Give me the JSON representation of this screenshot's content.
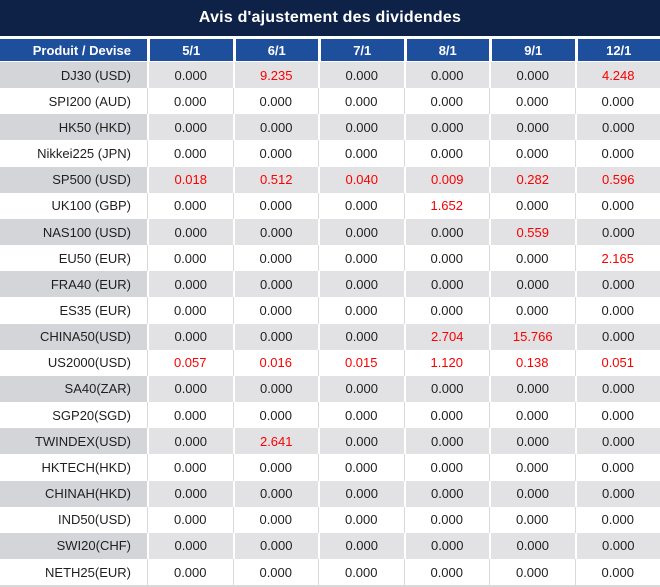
{
  "title": "Avis d'ajustement des dividendes",
  "colors": {
    "title_background": "#0e2247",
    "header_background": "#1d4f9c",
    "stripe_label_gray": "#d3d5d9",
    "stripe_value_gray": "#e2e2e4",
    "gridline_gray": "#d9d9d9",
    "value_red": "#fa0000",
    "value_dark": "#1f1f1f"
  },
  "table": {
    "columns": [
      "Produit / Devise",
      "5/1",
      "6/1",
      "7/1",
      "8/1",
      "9/1",
      "12/1"
    ],
    "rows": [
      {
        "product": "DJ30 (USD)",
        "values": [
          "0.000",
          "9.235",
          "0.000",
          "0.000",
          "0.000",
          "4.248"
        ],
        "red": [
          1,
          5
        ]
      },
      {
        "product": "SPI200 (AUD)",
        "values": [
          "0.000",
          "0.000",
          "0.000",
          "0.000",
          "0.000",
          "0.000"
        ],
        "red": []
      },
      {
        "product": "HK50 (HKD)",
        "values": [
          "0.000",
          "0.000",
          "0.000",
          "0.000",
          "0.000",
          "0.000"
        ],
        "red": []
      },
      {
        "product": "Nikkei225 (JPN)",
        "values": [
          "0.000",
          "0.000",
          "0.000",
          "0.000",
          "0.000",
          "0.000"
        ],
        "red": []
      },
      {
        "product": "SP500 (USD)",
        "values": [
          "0.018",
          "0.512",
          "0.040",
          "0.009",
          "0.282",
          "0.596"
        ],
        "red": [
          0,
          1,
          2,
          3,
          4,
          5
        ]
      },
      {
        "product": "UK100 (GBP)",
        "values": [
          "0.000",
          "0.000",
          "0.000",
          "1.652",
          "0.000",
          "0.000"
        ],
        "red": [
          3
        ]
      },
      {
        "product": "NAS100 (USD)",
        "values": [
          "0.000",
          "0.000",
          "0.000",
          "0.000",
          "0.559",
          "0.000"
        ],
        "red": [
          4
        ]
      },
      {
        "product": "EU50 (EUR)",
        "values": [
          "0.000",
          "0.000",
          "0.000",
          "0.000",
          "0.000",
          "2.165"
        ],
        "red": [
          5
        ]
      },
      {
        "product": "FRA40 (EUR)",
        "values": [
          "0.000",
          "0.000",
          "0.000",
          "0.000",
          "0.000",
          "0.000"
        ],
        "red": []
      },
      {
        "product": "ES35 (EUR)",
        "values": [
          "0.000",
          "0.000",
          "0.000",
          "0.000",
          "0.000",
          "0.000"
        ],
        "red": []
      },
      {
        "product": "CHINA50(USD)",
        "values": [
          "0.000",
          "0.000",
          "0.000",
          "2.704",
          "15.766",
          "0.000"
        ],
        "red": [
          3,
          4
        ]
      },
      {
        "product": "US2000(USD)",
        "values": [
          "0.057",
          "0.016",
          "0.015",
          "1.120",
          "0.138",
          "0.051"
        ],
        "red": [
          0,
          1,
          2,
          3,
          4,
          5
        ]
      },
      {
        "product": "SA40(ZAR)",
        "values": [
          "0.000",
          "0.000",
          "0.000",
          "0.000",
          "0.000",
          "0.000"
        ],
        "red": []
      },
      {
        "product": "SGP20(SGD)",
        "values": [
          "0.000",
          "0.000",
          "0.000",
          "0.000",
          "0.000",
          "0.000"
        ],
        "red": []
      },
      {
        "product": "TWINDEX(USD)",
        "values": [
          "0.000",
          "2.641",
          "0.000",
          "0.000",
          "0.000",
          "0.000"
        ],
        "red": [
          1
        ]
      },
      {
        "product": "HKTECH(HKD)",
        "values": [
          "0.000",
          "0.000",
          "0.000",
          "0.000",
          "0.000",
          "0.000"
        ],
        "red": []
      },
      {
        "product": "CHINAH(HKD)",
        "values": [
          "0.000",
          "0.000",
          "0.000",
          "0.000",
          "0.000",
          "0.000"
        ],
        "red": []
      },
      {
        "product": "IND50(USD)",
        "values": [
          "0.000",
          "0.000",
          "0.000",
          "0.000",
          "0.000",
          "0.000"
        ],
        "red": []
      },
      {
        "product": "SWI20(CHF)",
        "values": [
          "0.000",
          "0.000",
          "0.000",
          "0.000",
          "0.000",
          "0.000"
        ],
        "red": []
      },
      {
        "product": "NETH25(EUR)",
        "values": [
          "0.000",
          "0.000",
          "0.000",
          "0.000",
          "0.000",
          "0.000"
        ],
        "red": []
      }
    ]
  }
}
